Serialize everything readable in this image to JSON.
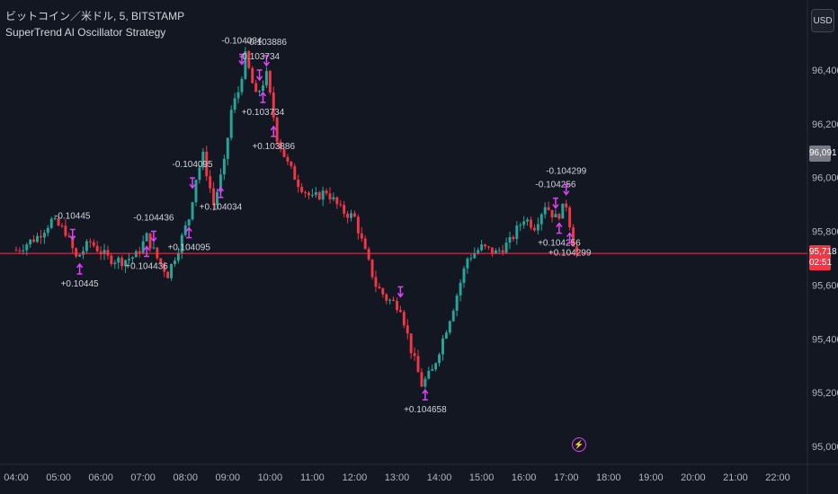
{
  "legend": {
    "symbol_line": "ビットコイン／米ドル, 5, BITSTAMP",
    "strategy_name": "SuperTrend AI Oscillator Strategy"
  },
  "currency_button": "USD",
  "price_axis": {
    "ticks": [
      "96,400",
      "96,200",
      "96,000",
      "95,800",
      "95,600",
      "95,400",
      "95,200",
      "95,000"
    ],
    "last_price_badge": "96,091",
    "current_price_badge": "95,718",
    "countdown": "02:51"
  },
  "time_axis": {
    "ticks": [
      "04:00",
      "05:00",
      "06:00",
      "07:00",
      "08:00",
      "09:00",
      "10:00",
      "11:00",
      "12:00",
      "13:00",
      "14:00",
      "15:00",
      "16:00",
      "17:00",
      "18:00",
      "19:00",
      "20:00",
      "21:00",
      "22:00"
    ]
  },
  "colors": {
    "background": "#131722",
    "up": "#26a69a",
    "down": "#f23645",
    "signal_magenta": "#e040fb",
    "signal_blue": "#2962ff",
    "price_line": "#f23645"
  },
  "chart_data": {
    "type": "candlestick",
    "symbol": "ビットコイン／米ドル",
    "interval": "5",
    "exchange": "BITSTAMP",
    "ylim": [
      95000,
      96500
    ],
    "y_ticks": [
      96400,
      96200,
      96000,
      95800,
      95600,
      95400,
      95200,
      95000
    ],
    "x_ticks": [
      "04:00",
      "05:00",
      "06:00",
      "07:00",
      "08:00",
      "09:00",
      "10:00",
      "11:00",
      "12:00",
      "13:00",
      "14:00",
      "15:00",
      "16:00",
      "17:00",
      "18:00",
      "19:00",
      "20:00",
      "21:00",
      "22:00"
    ],
    "last_price": 95718,
    "close_path": [
      [
        "04:00",
        95730
      ],
      [
        "04:30",
        95780
      ],
      [
        "04:50",
        95840
      ],
      [
        "05:10",
        95800
      ],
      [
        "05:25",
        95700
      ],
      [
        "05:45",
        95760
      ],
      [
        "06:10",
        95700
      ],
      [
        "06:30",
        95690
      ],
      [
        "06:50",
        95710
      ],
      [
        "07:05",
        95780
      ],
      [
        "07:20",
        95700
      ],
      [
        "07:35",
        95640
      ],
      [
        "07:50",
        95740
      ],
      [
        "08:05",
        95850
      ],
      [
        "08:15",
        96000
      ],
      [
        "08:25",
        96080
      ],
      [
        "08:40",
        95900
      ],
      [
        "08:55",
        96050
      ],
      [
        "09:05",
        96250
      ],
      [
        "09:15",
        96320
      ],
      [
        "09:25",
        96450
      ],
      [
        "09:40",
        96300
      ],
      [
        "09:55",
        96380
      ],
      [
        "10:10",
        96150
      ],
      [
        "10:25",
        96050
      ],
      [
        "10:40",
        95980
      ],
      [
        "11:00",
        95920
      ],
      [
        "11:20",
        95950
      ],
      [
        "11:40",
        95880
      ],
      [
        "12:00",
        95850
      ],
      [
        "12:15",
        95720
      ],
      [
        "12:30",
        95600
      ],
      [
        "12:45",
        95550
      ],
      [
        "13:05",
        95520
      ],
      [
        "13:20",
        95360
      ],
      [
        "13:35",
        95230
      ],
      [
        "13:50",
        95280
      ],
      [
        "14:05",
        95400
      ],
      [
        "14:20",
        95520
      ],
      [
        "14:40",
        95700
      ],
      [
        "15:00",
        95740
      ],
      [
        "15:20",
        95720
      ],
      [
        "15:40",
        95760
      ],
      [
        "16:00",
        95850
      ],
      [
        "16:15",
        95820
      ],
      [
        "16:30",
        95900
      ],
      [
        "16:45",
        95850
      ],
      [
        "17:00",
        95900
      ],
      [
        "17:10",
        95760
      ],
      [
        "17:15",
        95718
      ]
    ],
    "signals": [
      {
        "time": "05:20",
        "kind": "short",
        "label": "-0.10445"
      },
      {
        "time": "05:30",
        "kind": "long",
        "label": "+0.10445"
      },
      {
        "time": "07:15",
        "kind": "short",
        "label": "-0.104436"
      },
      {
        "time": "07:05",
        "kind": "long",
        "label": "+0.104436"
      },
      {
        "time": "08:10",
        "kind": "short",
        "label": "-0.104095"
      },
      {
        "time": "08:05",
        "kind": "long",
        "label": "+0.104095"
      },
      {
        "time": "09:20",
        "kind": "short",
        "label": "-0.104034"
      },
      {
        "time": "08:50",
        "kind": "long",
        "label": "+0.104034"
      },
      {
        "time": "09:55",
        "kind": "short",
        "label": "-0.103886"
      },
      {
        "time": "10:05",
        "kind": "long",
        "label": "+0.103886"
      },
      {
        "time": "09:45",
        "kind": "short",
        "label": "-0.103734"
      },
      {
        "time": "09:50",
        "kind": "long",
        "label": "+0.103734"
      },
      {
        "time": "13:05",
        "kind": "short",
        "label": ""
      },
      {
        "time": "13:40",
        "kind": "long",
        "label": "+0.104658"
      },
      {
        "time": "16:45",
        "kind": "short",
        "label": "-0.104256"
      },
      {
        "time": "17:00",
        "kind": "short",
        "label": "-0.104299"
      },
      {
        "time": "16:50",
        "kind": "long",
        "label": "+0.104256"
      },
      {
        "time": "17:05",
        "kind": "long",
        "label": "+0.104299"
      }
    ]
  }
}
